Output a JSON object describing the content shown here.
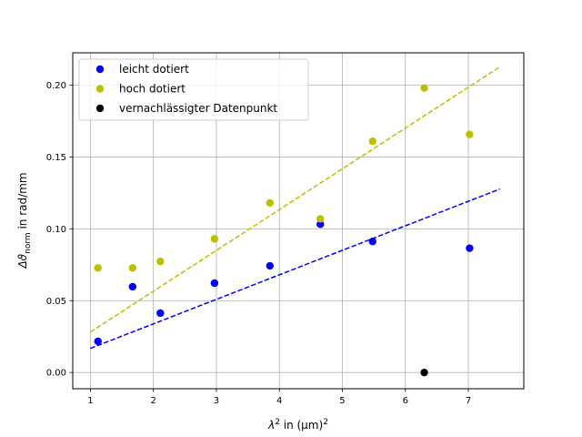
{
  "chart_data": {
    "type": "scatter",
    "xlim": [
      0.72,
      7.88
    ],
    "ylim": [
      -0.0113,
      0.2225
    ],
    "x_ticks": [
      1,
      2,
      3,
      4,
      5,
      6,
      7
    ],
    "y_ticks": [
      0.0,
      0.05,
      0.1,
      0.15,
      0.2
    ],
    "x_tick_labels": [
      "1",
      "2",
      "3",
      "4",
      "5",
      "6",
      "7"
    ],
    "y_tick_labels": [
      "0.00",
      "0.05",
      "0.10",
      "0.15",
      "0.20"
    ],
    "grid": true,
    "legend_position": "top-left",
    "axes": {
      "xlabel": {
        "symbol": "λ",
        "sup": "2",
        "text": " in (µm)",
        "sup2": "2"
      },
      "ylabel": {
        "symbol": "Δϑ",
        "sub": "norm",
        "text": " in rad/mm"
      }
    },
    "series": [
      {
        "name": "leicht dotiert",
        "color": "#0000ff",
        "marker": "circle",
        "points": [
          [
            1.12,
            0.0217
          ],
          [
            1.67,
            0.0597
          ],
          [
            2.11,
            0.0413
          ],
          [
            2.97,
            0.0622
          ],
          [
            3.85,
            0.0742
          ],
          [
            4.65,
            0.1032
          ],
          [
            5.48,
            0.0912
          ],
          [
            7.02,
            0.0865
          ]
        ],
        "fit": {
          "color": "#0000ff",
          "style": "dashed",
          "from": [
            1.0,
            0.0168
          ],
          "to": [
            7.5,
            0.1277
          ]
        }
      },
      {
        "name": "hoch dotiert",
        "color": "#bfbf00",
        "marker": "circle",
        "points": [
          [
            1.12,
            0.0728
          ],
          [
            1.67,
            0.0728
          ],
          [
            2.11,
            0.0773
          ],
          [
            2.97,
            0.093
          ],
          [
            3.85,
            0.118
          ],
          [
            4.65,
            0.1069
          ],
          [
            5.48,
            0.1609
          ],
          [
            6.3,
            0.198
          ],
          [
            7.02,
            0.1657
          ]
        ],
        "fit": {
          "color": "#bfbf00",
          "style": "dashed",
          "from": [
            1.0,
            0.0282
          ],
          "to": [
            7.5,
            0.2127
          ]
        }
      },
      {
        "name": "vernachlässigter Datenpunkt",
        "color": "#000000",
        "marker": "circle",
        "points": [
          [
            6.3,
            0.0
          ]
        ]
      }
    ]
  }
}
